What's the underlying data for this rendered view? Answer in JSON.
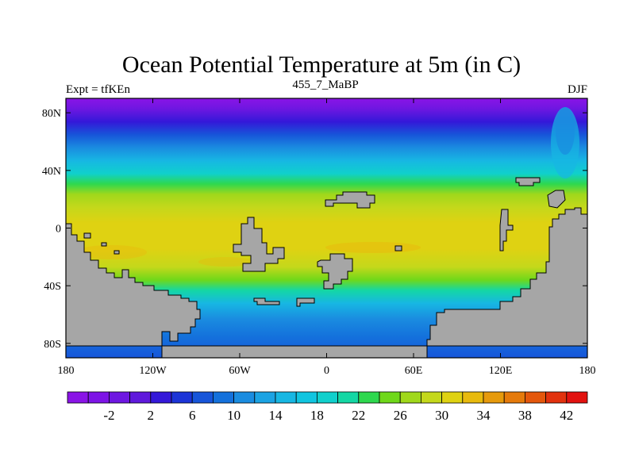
{
  "title": "Ocean Potential Temperature at 5m (in C)",
  "left_label": "Expt = tfKEn",
  "center_label": "455_7_MaBP",
  "right_label": "DJF",
  "map": {
    "y_ticks": [
      {
        "lat": 80,
        "label": "80N"
      },
      {
        "lat": 40,
        "label": "40N"
      },
      {
        "lat": 0,
        "label": "0"
      },
      {
        "lat": -40,
        "label": "40S"
      },
      {
        "lat": -80,
        "label": "80S"
      }
    ],
    "x_ticks": [
      {
        "lon": -180,
        "label": "180"
      },
      {
        "lon": -120,
        "label": "120W"
      },
      {
        "lon": -60,
        "label": "60W"
      },
      {
        "lon": 0,
        "label": "0"
      },
      {
        "lon": 60,
        "label": "60E"
      },
      {
        "lon": 120,
        "label": "120E"
      },
      {
        "lon": 180,
        "label": "180"
      }
    ],
    "land_color": "#a6a6a6"
  },
  "colorbar": {
    "levels": [
      -4,
      -2,
      0,
      2,
      4,
      6,
      8,
      10,
      12,
      14,
      16,
      18,
      20,
      22,
      24,
      26,
      28,
      30,
      32,
      34,
      36,
      38,
      40,
      42,
      44
    ],
    "colors": [
      "#8a14e6",
      "#7d14e6",
      "#6e17e1",
      "#5f19dc",
      "#3418d9",
      "#1c34d7",
      "#1755d9",
      "#1471dc",
      "#1a8ce0",
      "#1ba3e3",
      "#17b7e3",
      "#10c5e0",
      "#10d0cc",
      "#14d7a4",
      "#2ed84e",
      "#6fd81a",
      "#a0d81b",
      "#c4d81b",
      "#dfd212",
      "#e8ba0d",
      "#e69a0c",
      "#e57a0b",
      "#e4570c",
      "#e2320e",
      "#e2120f"
    ],
    "labels": [
      {
        "value": -2,
        "text": "-2"
      },
      {
        "value": 2,
        "text": "2"
      },
      {
        "value": 6,
        "text": "6"
      },
      {
        "value": 10,
        "text": "10"
      },
      {
        "value": 14,
        "text": "14"
      },
      {
        "value": 18,
        "text": "18"
      },
      {
        "value": 22,
        "text": "22"
      },
      {
        "value": 26,
        "text": "26"
      },
      {
        "value": 30,
        "text": "30"
      },
      {
        "value": 34,
        "text": "34"
      },
      {
        "value": 38,
        "text": "38"
      },
      {
        "value": 42,
        "text": "42"
      }
    ]
  }
}
